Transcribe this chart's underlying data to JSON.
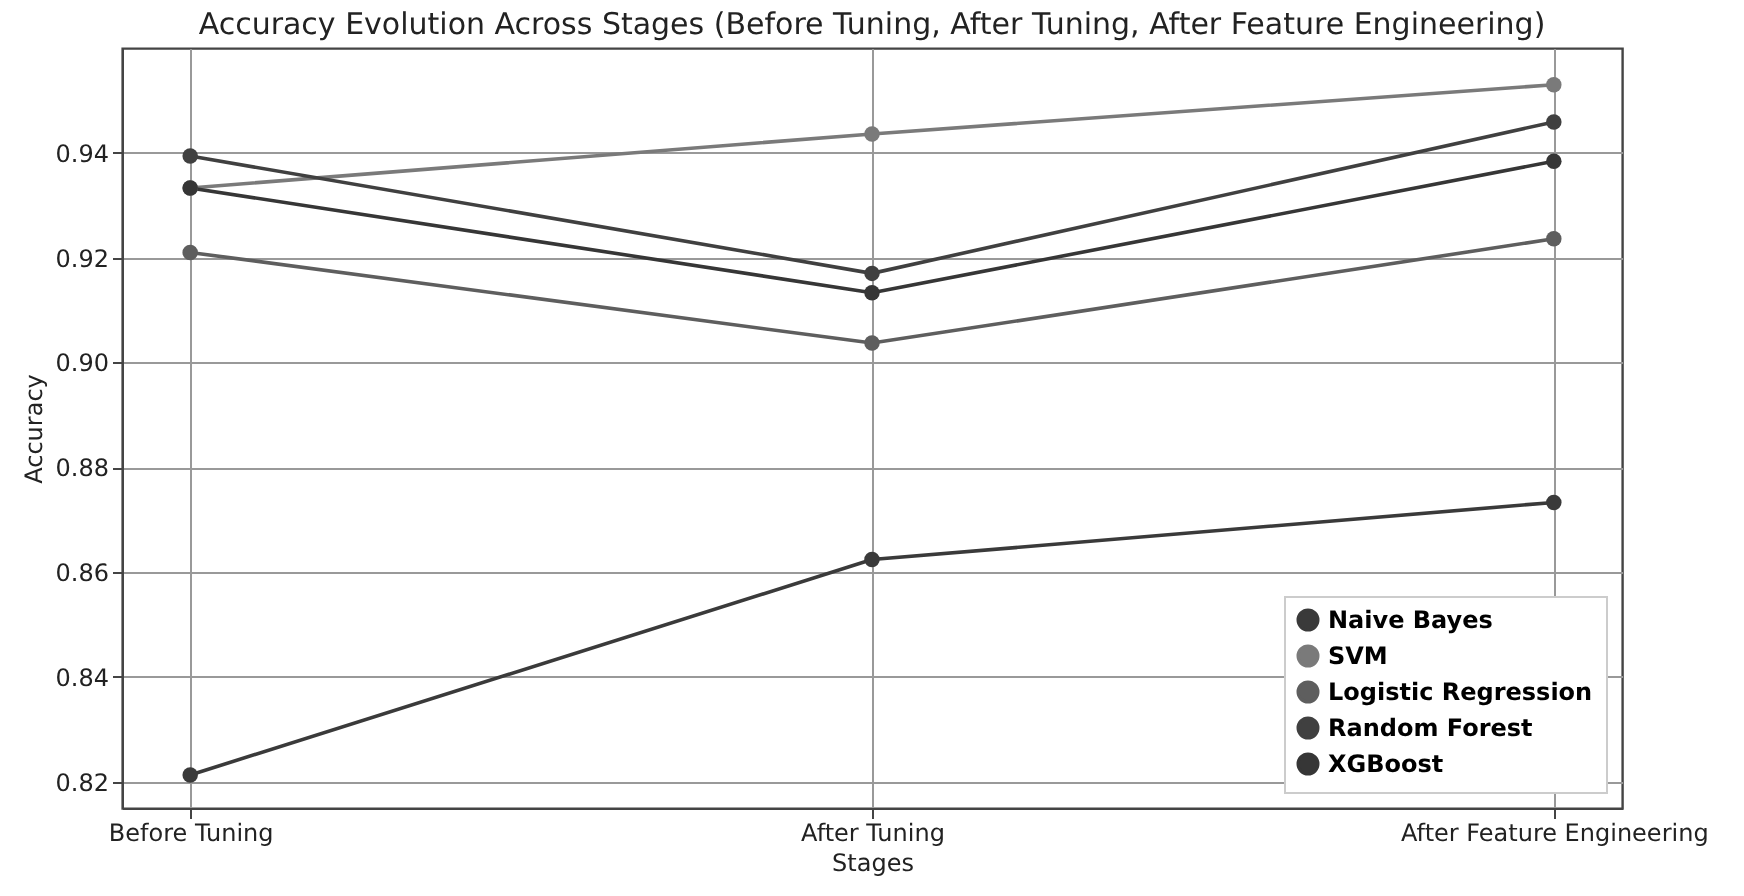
{
  "chart_data": {
    "type": "line",
    "title": "Accuracy Evolution Across Stages (Before Tuning, After Tuning, After Feature Engineering)",
    "xlabel": "Stages",
    "ylabel": "Accuracy",
    "categories": [
      "Before Tuning",
      "After Tuning",
      "After Feature Engineering"
    ],
    "series": [
      {
        "name": "Naive Bayes",
        "color": "#3a3a3a",
        "values": [
          0.8213,
          0.8624,
          0.8733
        ]
      },
      {
        "name": "SVM",
        "color": "#7a7a7a",
        "values": [
          0.9333,
          0.9436,
          0.953
        ]
      },
      {
        "name": "Logistic Regression",
        "color": "#5e5e5e",
        "values": [
          0.921,
          0.9037,
          0.9236
        ]
      },
      {
        "name": "Random Forest",
        "color": "#404040",
        "values": [
          0.9394,
          0.917,
          0.9459
        ]
      },
      {
        "name": "XGBoost",
        "color": "#363636",
        "values": [
          0.9333,
          0.9133,
          0.9384
        ]
      }
    ],
    "ylim": [
      0.815,
      0.96
    ],
    "yticks": [
      0.82,
      0.84,
      0.86,
      0.88,
      {
        "value": 0.9,
        "label": "0.90"
      },
      0.92,
      0.94
    ],
    "grid": true,
    "legend": "bottom right",
    "marker": "circle",
    "line_style": "solid"
  }
}
